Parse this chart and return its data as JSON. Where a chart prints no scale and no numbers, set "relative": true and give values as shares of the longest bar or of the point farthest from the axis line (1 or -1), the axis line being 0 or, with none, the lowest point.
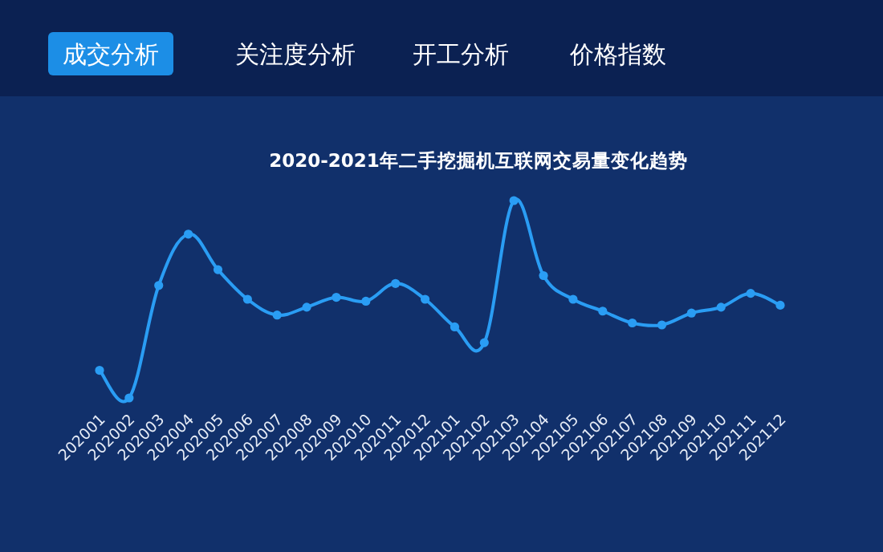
{
  "chart_data": {
    "type": "line",
    "title": "2020-2021年二手挖掘机互联网交易量变化趋势",
    "annotations": [
      "成交分析",
      "关注度分析",
      "开工分析",
      "价格指数"
    ],
    "categories": [
      "202001",
      "202002",
      "202003",
      "202004",
      "202005",
      "202006",
      "202007",
      "202008",
      "202009",
      "202010",
      "202011",
      "202012",
      "202101",
      "202102",
      "202103",
      "202104",
      "202105",
      "202106",
      "202107",
      "202108",
      "202109",
      "202110",
      "202111",
      "202112"
    ],
    "series": [
      {
        "color": "#2a9df4",
        "values": [
          0.14,
          0,
          0.57,
          0.83,
          0.65,
          0.5,
          0.42,
          0.46,
          0.51,
          0.49,
          0.58,
          0.5,
          0.36,
          0.28,
          1,
          0.62,
          0.5,
          0.44,
          0.38,
          0.37,
          0.43,
          0.46,
          0.53,
          0.47
        ]
      }
    ],
    "relative": true,
    "marker": "circle",
    "line_style": "solid"
  }
}
